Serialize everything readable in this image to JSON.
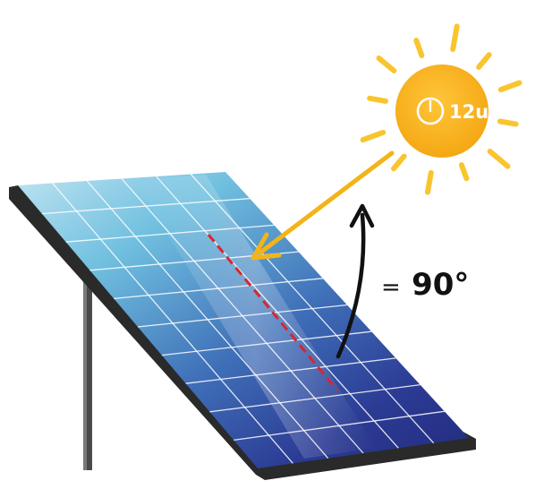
{
  "sun": {
    "time_label": "12u",
    "icon": "clock-icon",
    "color": "#F9B51A",
    "ray_color": "#F9C52E"
  },
  "angle": {
    "prefix": "=",
    "value": "90°"
  },
  "colors": {
    "panel_top": "#7EC8E3",
    "panel_bottom": "#2B3589",
    "frame": "#2A2A2A",
    "sun_ray_arrow": "#F2B417",
    "perpendicular_line": "#D9262B",
    "angle_arrow": "#111111"
  }
}
